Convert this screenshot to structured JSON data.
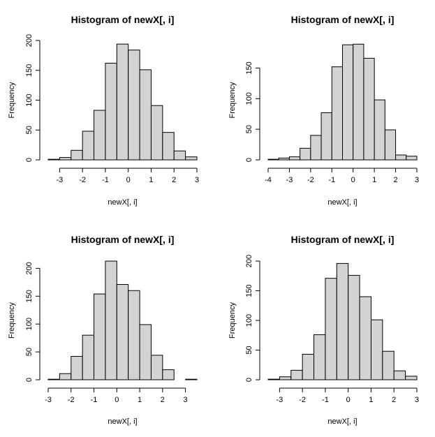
{
  "chart_data": [
    {
      "type": "bar",
      "title": "Histogram of newX[, i]",
      "xlabel": "newX[, i]",
      "ylabel": "Frequency",
      "xticks": [
        -3,
        -2,
        -1,
        0,
        1,
        2,
        3
      ],
      "yticks": [
        0,
        50,
        100,
        150,
        200
      ],
      "bin_start": -3.5,
      "bin_width": 0.5,
      "values": [
        1,
        4,
        16,
        48,
        83,
        162,
        194,
        184,
        151,
        91,
        46,
        15,
        5
      ]
    },
    {
      "type": "bar",
      "title": "Histogram of newX[, i]",
      "xlabel": "newX[, i]",
      "ylabel": "Frequency",
      "xticks": [
        -4,
        -3,
        -2,
        -1,
        0,
        1,
        2,
        3
      ],
      "yticks": [
        0,
        50,
        100,
        150
      ],
      "bin_start": -4.0,
      "bin_width": 0.5,
      "values": [
        1,
        3,
        5,
        19,
        40,
        77,
        152,
        188,
        189,
        166,
        98,
        49,
        8,
        6
      ]
    },
    {
      "type": "bar",
      "title": "Histogram of newX[, i]",
      "xlabel": "newX[, i]",
      "ylabel": "Frequency",
      "xticks": [
        -3,
        -2,
        -1,
        0,
        1,
        2,
        3
      ],
      "yticks": [
        0,
        50,
        100,
        150,
        200
      ],
      "bin_start": -3.0,
      "bin_width": 0.5,
      "values": [
        1,
        11,
        42,
        80,
        154,
        213,
        171,
        160,
        99,
        44,
        18,
        0,
        1
      ]
    },
    {
      "type": "bar",
      "title": "Histogram of newX[, i]",
      "xlabel": "newX[, i]",
      "ylabel": "Frequency",
      "xticks": [
        -3,
        -2,
        -1,
        0,
        1,
        2,
        3
      ],
      "yticks": [
        0,
        50,
        100,
        150,
        200
      ],
      "bin_start": -3.5,
      "bin_width": 0.5,
      "values": [
        1,
        5,
        16,
        43,
        76,
        171,
        196,
        176,
        140,
        101,
        48,
        15,
        6
      ]
    }
  ]
}
